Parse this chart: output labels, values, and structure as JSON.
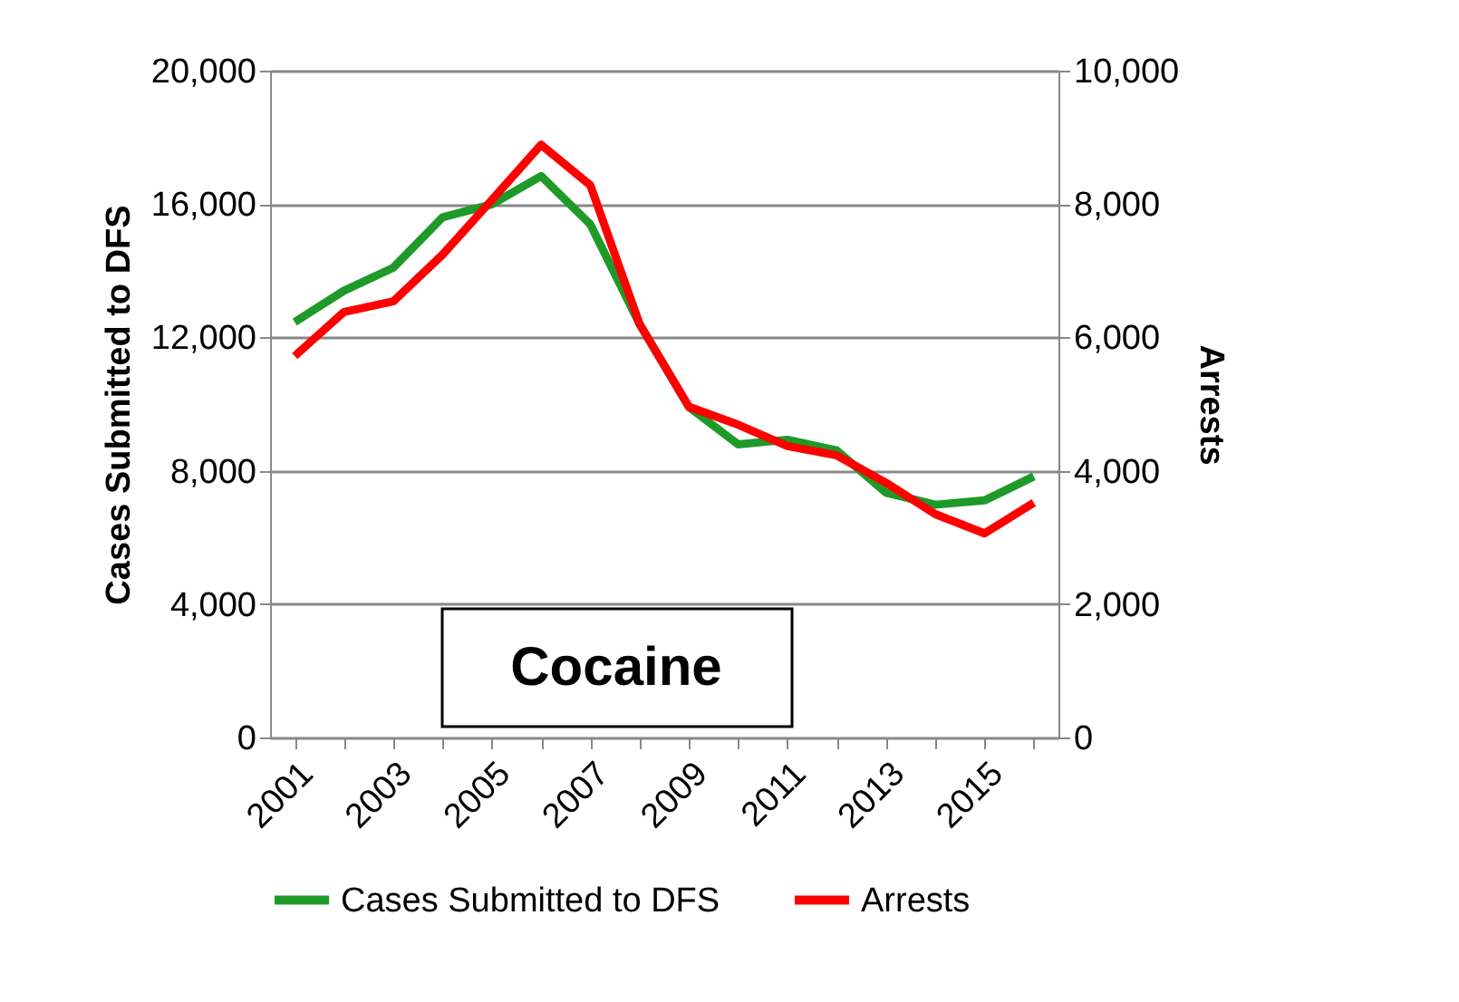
{
  "chart_data": {
    "type": "line",
    "categories": [
      "2001",
      null,
      "2003",
      null,
      "2005",
      null,
      "2007",
      null,
      "2009",
      null,
      "2011",
      null,
      "2013",
      null,
      "2015",
      null
    ],
    "series": [
      {
        "name": "Cases Submitted to DFS",
        "color": "#1e9a28",
        "values": [
          12460,
          13400,
          14090,
          15600,
          15990,
          16840,
          15390,
          12400,
          9910,
          8790,
          8930,
          8610,
          7340,
          6980,
          7110,
          7830
        ]
      },
      {
        "name": "Arrests",
        "color": "#ff0000",
        "axis": "y2",
        "values": [
          5720,
          6380,
          6540,
          7240,
          8060,
          8890,
          8280,
          6200,
          4960,
          4690,
          4370,
          4230,
          3820,
          3350,
          3060,
          3520
        ]
      }
    ],
    "ylabel": "Cases Submitted to DFS",
    "y2label": "Arrests",
    "ylim": [
      0,
      20000
    ],
    "yticks": [
      {
        "value": 0,
        "label": "0"
      },
      {
        "value": 4000,
        "label": "4,000"
      },
      {
        "value": 8000,
        "label": "8,000"
      },
      {
        "value": 12000,
        "label": "12,000"
      },
      {
        "value": 16000,
        "label": "16,000"
      },
      {
        "value": 20000,
        "label": "20,000"
      }
    ],
    "y2lim": [
      0,
      10000
    ],
    "y2ticks": [
      {
        "value": 0,
        "label": "0"
      },
      {
        "value": 2000,
        "label": "2,000"
      },
      {
        "value": 4000,
        "label": "4,000"
      },
      {
        "value": 6000,
        "label": "6,000"
      },
      {
        "value": 8000,
        "label": "8,000"
      },
      {
        "value": 10000,
        "label": "10,000"
      }
    ],
    "annotations": [
      "Cocaine"
    ],
    "grid": "y",
    "legend": "bottom",
    "marker": "none",
    "line_style": "solid"
  }
}
